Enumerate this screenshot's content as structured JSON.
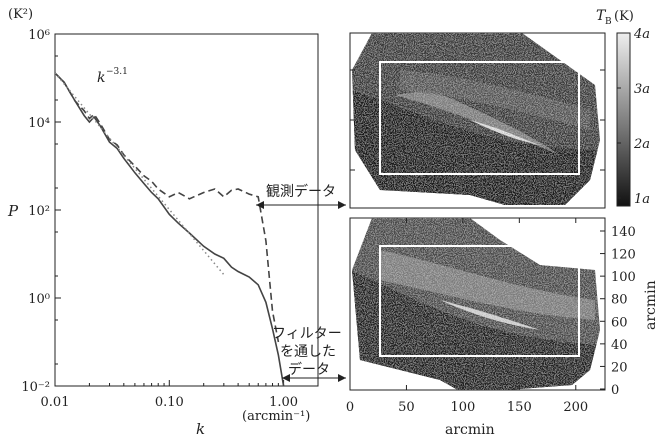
{
  "chart_data": [
    {
      "type": "line",
      "title": "",
      "xlabel": "k",
      "xunit": "(arcmin⁻¹)",
      "ylabel": "P",
      "yunit": "(K²)",
      "xscale": "log",
      "yscale": "log",
      "xlim": [
        0.01,
        2
      ],
      "ylim": [
        0.01,
        1000000
      ],
      "xticks": [
        "0.01",
        "0.10",
        "1.00"
      ],
      "yticks": [
        "10⁻²",
        "10⁰",
        "10²",
        "10⁴",
        "10⁶"
      ],
      "fit_label": "k⁻³·¹",
      "series": [
        {
          "name": "観測データ",
          "style": "dashed",
          "x": [
            0.01,
            0.012,
            0.015,
            0.018,
            0.02,
            0.022,
            0.025,
            0.03,
            0.035,
            0.04,
            0.05,
            0.06,
            0.07,
            0.08,
            0.1,
            0.12,
            0.15,
            0.2,
            0.25,
            0.3,
            0.35,
            0.4,
            0.5,
            0.6,
            0.7,
            0.8,
            0.9
          ],
          "y": [
            130000,
            80000,
            30000,
            18000,
            12000,
            15000,
            9000,
            4000,
            3000,
            1800,
            1000,
            600,
            450,
            300,
            200,
            250,
            180,
            250,
            300,
            200,
            280,
            300,
            230,
            200,
            20,
            0.5,
            0.1
          ]
        },
        {
          "name": "フィルターを通したデータ",
          "style": "solid",
          "x": [
            0.01,
            0.012,
            0.015,
            0.018,
            0.02,
            0.022,
            0.025,
            0.03,
            0.035,
            0.04,
            0.05,
            0.06,
            0.07,
            0.08,
            0.1,
            0.12,
            0.15,
            0.2,
            0.25,
            0.3,
            0.35,
            0.4,
            0.5,
            0.6,
            0.7,
            0.8,
            0.9,
            1.0
          ],
          "y": [
            130000,
            80000,
            30000,
            14000,
            10000,
            13000,
            8000,
            3500,
            2500,
            1500,
            700,
            400,
            250,
            180,
            80,
            50,
            30,
            15,
            10,
            8,
            5,
            4,
            3,
            2,
            0.8,
            0.2,
            0.05,
            0.01
          ]
        },
        {
          "name": "",
          "style": "dotted",
          "x": [
            0.01,
            0.3
          ],
          "y": [
            130000,
            3.4
          ]
        }
      ]
    },
    {
      "type": "heatmap",
      "xlabel": "arcmin",
      "ylabel": "arcmin",
      "xticks": [
        "0",
        "50",
        "100",
        "150",
        "200"
      ],
      "yticks": [
        "0",
        "20",
        "40",
        "60",
        "80",
        "100",
        "120",
        "140"
      ],
      "colorbar_label": "T_B (K)",
      "colorbar_ticks": [
        "1a",
        "2a",
        "3a",
        "4a"
      ]
    }
  ],
  "annotations": {
    "observed": "観測データ",
    "filtered_1": "フィルター",
    "filtered_2": "を通した",
    "filtered_3": "データ",
    "k_power_base": "k",
    "k_power_exp": "−3.1",
    "x_unit_label": "(arcmin⁻¹)",
    "y_unit_label": "(K²)",
    "tb_label_t": "T",
    "tb_label_sub": "B",
    "tb_label_unit": "(K)",
    "right_ylabel": "arcmin",
    "bottom_xlabel": "arcmin",
    "colorbar": [
      "4a",
      "3a",
      "2a",
      "1a"
    ],
    "map_xticks": [
      "0",
      "50",
      "100",
      "150",
      "200"
    ],
    "map_yticks": [
      "0",
      "20",
      "40",
      "60",
      "80",
      "100",
      "120",
      "140"
    ]
  },
  "colors": {
    "line": "#444444",
    "fit": "#888888",
    "frame": "#ffffff"
  }
}
